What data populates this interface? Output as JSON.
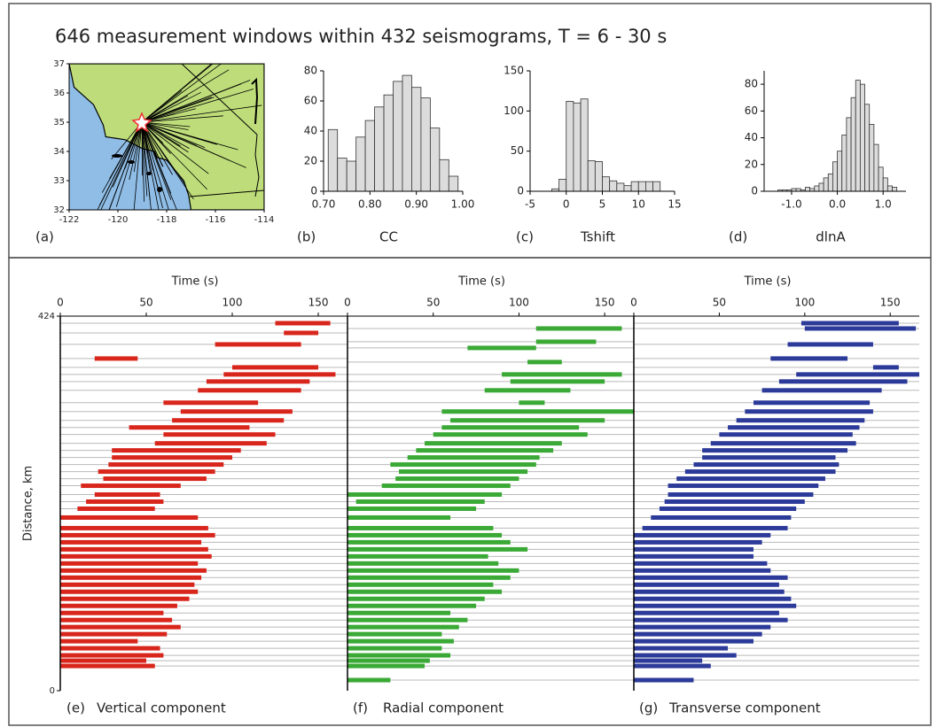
{
  "title": "646 measurement windows within 432 seismograms, T = 6 - 30 s",
  "chart_data": [
    {
      "type": "map",
      "panel": "(a)",
      "xlim": [
        -122,
        -114
      ],
      "xticks": [
        -122,
        -120,
        -118,
        -116,
        -114
      ],
      "ylim": [
        32,
        37
      ],
      "yticks": [
        32,
        33,
        34,
        35,
        36,
        37
      ]
    },
    {
      "type": "histogram",
      "panel": "(b)",
      "xlabel": "CC",
      "color": "#dcdcdc",
      "bins": [
        0.71,
        0.73,
        0.75,
        0.77,
        0.79,
        0.81,
        0.83,
        0.85,
        0.87,
        0.89,
        0.91,
        0.93,
        0.95,
        0.97,
        0.99
      ],
      "values": [
        41,
        22,
        20,
        36,
        47,
        56,
        64,
        73,
        77,
        69,
        62,
        42,
        21,
        10
      ],
      "xlim": [
        0.7,
        1.0
      ],
      "xticks": [
        {
          "value": 0.7,
          "label": "0.70"
        },
        {
          "value": 0.8,
          "label": "0.80"
        },
        {
          "value": 0.9,
          "label": "0.90"
        },
        {
          "value": 1.0,
          "label": "1.00"
        }
      ],
      "ylim": [
        0,
        80
      ],
      "yticks": [
        0,
        20,
        40,
        60,
        80
      ]
    },
    {
      "type": "histogram",
      "panel": "(c)",
      "xlabel": "Tshift",
      "color": "#dcdcdc",
      "bins": [
        -2,
        -1,
        0,
        1,
        2,
        3,
        4,
        5,
        6,
        7,
        8,
        9,
        10,
        11,
        12,
        13
      ],
      "values": [
        3,
        15,
        112,
        110,
        115,
        38,
        37,
        18,
        13,
        10,
        7,
        12,
        12,
        12,
        12
      ],
      "xlim": [
        -5,
        15
      ],
      "xticks": [
        -5,
        0,
        5,
        10,
        15
      ],
      "ylim": [
        0,
        150
      ],
      "yticks": [
        0,
        50,
        100,
        150
      ]
    },
    {
      "type": "histogram",
      "panel": "(d)",
      "xlabel": "dlnA",
      "color": "#dcdcdc",
      "bins": [
        -1.3,
        -1.2,
        -1.1,
        -1.0,
        -0.9,
        -0.8,
        -0.7,
        -0.6,
        -0.5,
        -0.4,
        -0.3,
        -0.2,
        -0.1,
        0.0,
        0.1,
        0.2,
        0.3,
        0.4,
        0.5,
        0.6,
        0.7,
        0.8,
        0.9,
        1.0,
        1.1,
        1.2,
        1.3
      ],
      "values": [
        1,
        1,
        1,
        2,
        2,
        1,
        3,
        2,
        4,
        6,
        10,
        13,
        22,
        30,
        42,
        55,
        70,
        83,
        80,
        65,
        50,
        35,
        18,
        10,
        4,
        3
      ],
      "xlim": [
        -1.6,
        1.5
      ],
      "xticks": [
        {
          "value": -1,
          "label": "-1.0"
        },
        {
          "value": 0,
          "label": "0.0"
        },
        {
          "value": 1,
          "label": "1.0"
        }
      ],
      "ylim": [
        0,
        90
      ],
      "yticks": [
        0,
        20,
        40,
        60,
        80
      ]
    },
    {
      "type": "windows",
      "panel": "(e)",
      "caption": "Vertical component",
      "xlabel": "Time (s)",
      "ylabel": "Distance, km",
      "color": "#d9261c",
      "xlim": [
        0,
        167
      ],
      "xticks": [
        0,
        50,
        100,
        150
      ],
      "ylim": [
        0,
        424
      ],
      "yticks": [
        0,
        424
      ],
      "distance": [
        28,
        34,
        40,
        48,
        56,
        64,
        72,
        80,
        88,
        96,
        104,
        112,
        120,
        128,
        136,
        144,
        152,
        160,
        168,
        176,
        184,
        196,
        206,
        214,
        222,
        232,
        240,
        248,
        256,
        264,
        272,
        280,
        290,
        298,
        306,
        316,
        326,
        340,
        350,
        358,
        366,
        376,
        392,
        405,
        416
      ],
      "start": [
        0,
        0,
        0,
        0,
        0,
        0,
        0,
        0,
        0,
        0,
        0,
        0,
        0,
        0,
        0,
        0,
        0,
        0,
        0,
        0,
        0,
        0,
        10,
        15,
        20,
        12,
        25,
        22,
        28,
        30,
        30,
        55,
        60,
        40,
        65,
        70,
        60,
        80,
        85,
        95,
        100,
        20,
        90,
        130,
        125
      ],
      "end": [
        55,
        50,
        60,
        58,
        45,
        62,
        70,
        65,
        60,
        68,
        75,
        80,
        78,
        82,
        85,
        80,
        88,
        86,
        82,
        90,
        86,
        80,
        55,
        60,
        58,
        70,
        85,
        90,
        95,
        100,
        105,
        120,
        125,
        110,
        130,
        135,
        115,
        140,
        145,
        160,
        150,
        45,
        140,
        150,
        157
      ]
    },
    {
      "type": "windows",
      "panel": "(f)",
      "caption": "Radial component",
      "xlabel": "Time (s)",
      "color": "#3aa935",
      "xlim": [
        0,
        167
      ],
      "xticks": [
        0,
        50,
        100,
        150
      ],
      "ylim": [
        0,
        424
      ],
      "distance": [
        12,
        28,
        34,
        40,
        48,
        56,
        64,
        72,
        80,
        88,
        96,
        104,
        112,
        120,
        128,
        136,
        144,
        152,
        160,
        168,
        176,
        184,
        196,
        206,
        214,
        222,
        232,
        240,
        248,
        256,
        264,
        272,
        280,
        290,
        298,
        306,
        316,
        326,
        340,
        350,
        358,
        372,
        388,
        395,
        410
      ],
      "start": [
        0,
        0,
        0,
        0,
        0,
        0,
        0,
        0,
        0,
        0,
        0,
        0,
        0,
        0,
        0,
        0,
        0,
        0,
        0,
        0,
        0,
        0,
        0,
        0,
        5,
        0,
        20,
        28,
        30,
        25,
        35,
        40,
        45,
        50,
        55,
        60,
        55,
        100,
        80,
        95,
        90,
        105,
        70,
        110,
        110
      ],
      "end": [
        25,
        45,
        48,
        60,
        55,
        62,
        55,
        65,
        70,
        60,
        75,
        80,
        90,
        85,
        95,
        100,
        88,
        82,
        105,
        95,
        90,
        85,
        60,
        75,
        80,
        90,
        95,
        100,
        105,
        110,
        112,
        120,
        125,
        140,
        135,
        150,
        167,
        115,
        130,
        150,
        160,
        125,
        110,
        145,
        160
      ]
    },
    {
      "type": "windows",
      "panel": "(g)",
      "caption": "Transverse component",
      "xlabel": "Time (s)",
      "color": "#2c3a99",
      "xlim": [
        0,
        167
      ],
      "xticks": [
        0,
        50,
        100,
        150
      ],
      "ylim": [
        0,
        424
      ],
      "distance": [
        12,
        28,
        34,
        40,
        48,
        56,
        64,
        72,
        80,
        88,
        96,
        104,
        112,
        120,
        128,
        136,
        144,
        152,
        160,
        168,
        176,
        184,
        196,
        206,
        214,
        222,
        232,
        240,
        248,
        256,
        264,
        272,
        280,
        290,
        298,
        306,
        316,
        326,
        340,
        350,
        358,
        366,
        376,
        392,
        410,
        416
      ],
      "start": [
        0,
        0,
        0,
        0,
        0,
        0,
        0,
        0,
        0,
        0,
        0,
        0,
        0,
        0,
        0,
        0,
        0,
        0,
        0,
        0,
        0,
        5,
        10,
        15,
        18,
        20,
        20,
        25,
        30,
        35,
        40,
        40,
        45,
        50,
        55,
        60,
        65,
        70,
        75,
        85,
        95,
        140,
        80,
        90,
        100,
        98
      ],
      "end": [
        35,
        45,
        40,
        60,
        55,
        70,
        75,
        80,
        90,
        85,
        95,
        92,
        88,
        85,
        90,
        80,
        78,
        70,
        70,
        75,
        80,
        90,
        92,
        95,
        100,
        105,
        108,
        112,
        118,
        120,
        118,
        125,
        130,
        128,
        132,
        135,
        140,
        138,
        145,
        160,
        167,
        155,
        125,
        140,
        165,
        155
      ]
    }
  ]
}
